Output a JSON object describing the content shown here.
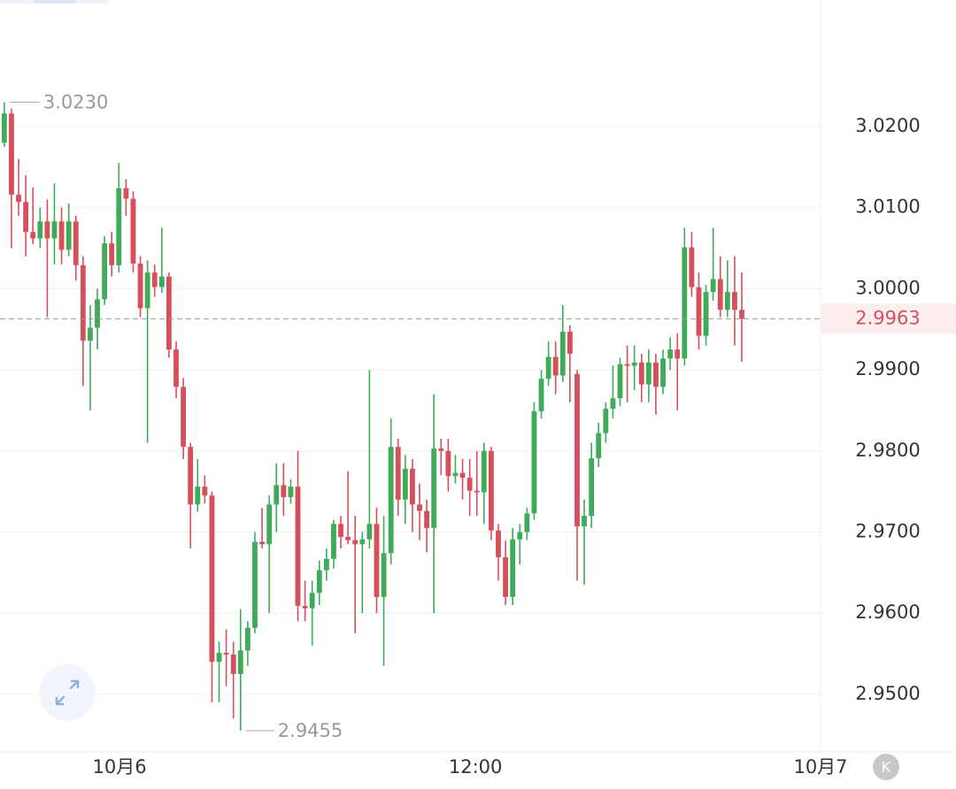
{
  "chart_data": {
    "type": "candlestick",
    "up_color": "#3fab58",
    "down_color": "#d6505b",
    "ylim": [
      2.9429,
      3.0356
    ],
    "yticks": [
      {
        "value": 3.02,
        "label": "3.0200"
      },
      {
        "value": 3.01,
        "label": "3.0100"
      },
      {
        "value": 3.0,
        "label": "3.0000"
      },
      {
        "value": 2.99,
        "label": "2.9900"
      },
      {
        "value": 2.98,
        "label": "2.9800"
      },
      {
        "value": 2.97,
        "label": "2.9700"
      },
      {
        "value": 2.96,
        "label": "2.9600"
      },
      {
        "value": 2.95,
        "label": "2.9500"
      }
    ],
    "xlim": [
      -0.6,
      114.0
    ],
    "xticks": [
      {
        "value": 16.1,
        "label": "10月6"
      },
      {
        "value": 65.8,
        "label": "12:00"
      },
      {
        "value": 114.0,
        "label": "10月7"
      }
    ],
    "grid": true,
    "high_label": "3.0230",
    "low_label": "2.9455",
    "last_label": "2.9963",
    "candles": [
      [
        3.018,
        3.023,
        3.0175,
        3.0216
      ],
      [
        3.0216,
        3.0222,
        3.005,
        3.0116
      ],
      [
        3.0116,
        3.016,
        3.009,
        3.0107
      ],
      [
        3.0107,
        3.014,
        3.004,
        3.007
      ],
      [
        3.007,
        3.0125,
        3.0055,
        3.0062
      ],
      [
        3.0062,
        3.01,
        3.005,
        3.0083
      ],
      [
        3.0083,
        3.011,
        2.9965,
        3.0062
      ],
      [
        3.0062,
        3.013,
        3.003,
        3.0083
      ],
      [
        3.0083,
        3.01,
        3.003,
        3.0048
      ],
      [
        3.0048,
        3.0105,
        3.004,
        3.0083
      ],
      [
        3.0083,
        3.009,
        3.001,
        3.0029
      ],
      [
        3.0029,
        3.004,
        2.988,
        2.9936
      ],
      [
        2.9936,
        2.998,
        2.985,
        2.9952
      ],
      [
        2.9952,
        3.0,
        2.9925,
        2.9987
      ],
      [
        2.9987,
        3.0065,
        2.998,
        3.0056
      ],
      [
        3.0056,
        3.007,
        3.0015,
        3.0029
      ],
      [
        3.0029,
        3.0155,
        3.002,
        3.0124
      ],
      [
        3.0124,
        3.0135,
        3.009,
        3.0111
      ],
      [
        3.0111,
        3.012,
        3.002,
        3.0031
      ],
      [
        3.0031,
        3.004,
        2.9965,
        2.9976
      ],
      [
        2.9976,
        3.0035,
        2.981,
        3.002
      ],
      [
        3.002,
        3.003,
        2.999,
        3.0002
      ],
      [
        3.0002,
        3.0075,
        2.9995,
        3.0015
      ],
      [
        3.0015,
        3.002,
        2.9915,
        2.9925
      ],
      [
        2.9925,
        2.9935,
        2.9865,
        2.9879
      ],
      [
        2.9879,
        2.989,
        2.979,
        2.9805
      ],
      [
        2.9805,
        2.981,
        2.968,
        2.9734
      ],
      [
        2.9734,
        2.979,
        2.9725,
        2.9756
      ],
      [
        2.9756,
        2.977,
        2.9735,
        2.9745
      ],
      [
        2.9745,
        2.975,
        2.949,
        2.954
      ],
      [
        2.954,
        2.9565,
        2.949,
        2.9551
      ],
      [
        2.9551,
        2.958,
        2.951,
        2.9549
      ],
      [
        2.9549,
        2.9565,
        2.947,
        2.9525
      ],
      [
        2.9525,
        2.9605,
        2.9455,
        2.9554
      ],
      [
        2.9554,
        2.959,
        2.9535,
        2.9582
      ],
      [
        2.9582,
        2.97,
        2.9575,
        2.9688
      ],
      [
        2.9688,
        2.973,
        2.968,
        2.9685
      ],
      [
        2.9685,
        2.9745,
        2.96,
        2.9734
      ],
      [
        2.9734,
        2.9785,
        2.97,
        2.9758
      ],
      [
        2.9758,
        2.9785,
        2.972,
        2.9743
      ],
      [
        2.9743,
        2.9765,
        2.9735,
        2.9756
      ],
      [
        2.9756,
        2.98,
        2.959,
        2.9609
      ],
      [
        2.9609,
        2.964,
        2.959,
        2.9606
      ],
      [
        2.9606,
        2.964,
        2.956,
        2.9625
      ],
      [
        2.9625,
        2.9665,
        2.961,
        2.9653
      ],
      [
        2.9653,
        2.968,
        2.964,
        2.9667
      ],
      [
        2.9667,
        2.9715,
        2.9655,
        2.971
      ],
      [
        2.971,
        2.972,
        2.968,
        2.9694
      ],
      [
        2.9694,
        2.9775,
        2.9685,
        2.969
      ],
      [
        2.969,
        2.972,
        2.9575,
        2.9685
      ],
      [
        2.9685,
        2.97,
        2.96,
        2.9691
      ],
      [
        2.9691,
        2.99,
        2.968,
        2.971
      ],
      [
        2.971,
        2.973,
        2.96,
        2.962
      ],
      [
        2.962,
        2.972,
        2.9535,
        2.9674
      ],
      [
        2.9674,
        2.984,
        2.966,
        2.9805
      ],
      [
        2.9805,
        2.9815,
        2.972,
        2.974
      ],
      [
        2.974,
        2.9795,
        2.971,
        2.9778
      ],
      [
        2.9778,
        2.979,
        2.97,
        2.9734
      ],
      [
        2.9734,
        2.976,
        2.969,
        2.9726
      ],
      [
        2.9726,
        2.974,
        2.9675,
        2.9705
      ],
      [
        2.9705,
        2.987,
        2.96,
        2.9803
      ],
      [
        2.9803,
        2.9815,
        2.977,
        2.98
      ],
      [
        2.98,
        2.9815,
        2.975,
        2.9769
      ],
      [
        2.9769,
        2.9795,
        2.976,
        2.9773
      ],
      [
        2.9773,
        2.979,
        2.974,
        2.9767
      ],
      [
        2.9767,
        2.979,
        2.972,
        2.9751
      ],
      [
        2.9751,
        2.98,
        2.972,
        2.9749
      ],
      [
        2.9749,
        2.981,
        2.971,
        2.98
      ],
      [
        2.98,
        2.9805,
        2.969,
        2.9702
      ],
      [
        2.9702,
        2.971,
        2.964,
        2.9669
      ],
      [
        2.9669,
        2.969,
        2.961,
        2.962
      ],
      [
        2.962,
        2.9705,
        2.961,
        2.9691
      ],
      [
        2.9691,
        2.971,
        2.966,
        2.97
      ],
      [
        2.97,
        2.973,
        2.969,
        2.9723
      ],
      [
        2.9723,
        2.986,
        2.9715,
        2.9849
      ],
      [
        2.9849,
        2.99,
        2.984,
        2.9889
      ],
      [
        2.9889,
        2.9935,
        2.988,
        2.9916
      ],
      [
        2.9916,
        2.9935,
        2.987,
        2.9893
      ],
      [
        2.9893,
        2.998,
        2.9885,
        2.9947
      ],
      [
        2.9947,
        2.9955,
        2.986,
        2.992
      ],
      [
        2.9895,
        2.99,
        2.964,
        2.9707
      ],
      [
        2.9707,
        2.974,
        2.9635,
        2.972
      ],
      [
        2.972,
        2.981,
        2.9705,
        2.9791
      ],
      [
        2.9791,
        2.9835,
        2.978,
        2.9822
      ],
      [
        2.9822,
        2.986,
        2.981,
        2.9852
      ],
      [
        2.9852,
        2.9905,
        2.984,
        2.9865
      ],
      [
        2.9865,
        2.9915,
        2.9855,
        2.9907
      ],
      [
        2.9907,
        2.993,
        2.986,
        2.9905
      ],
      [
        2.9905,
        2.993,
        2.9875,
        2.9909
      ],
      [
        2.9909,
        2.992,
        2.986,
        2.9882
      ],
      [
        2.9882,
        2.9925,
        2.986,
        2.9909
      ],
      [
        2.9909,
        2.992,
        2.9845,
        2.9879
      ],
      [
        2.9879,
        2.9925,
        2.987,
        2.9914
      ],
      [
        2.9914,
        2.994,
        2.99,
        2.9925
      ],
      [
        2.9925,
        2.9945,
        2.985,
        2.9914
      ],
      [
        2.9914,
        3.0075,
        2.9905,
        3.0051
      ],
      [
        3.0051,
        3.007,
        2.999,
        3.0002
      ],
      [
        3.0002,
        3.002,
        2.9925,
        2.9942
      ],
      [
        2.9942,
        3.0005,
        2.993,
        2.9996
      ],
      [
        2.9996,
        3.0075,
        2.9985,
        3.0012
      ],
      [
        3.0012,
        3.004,
        2.9965,
        2.9974
      ],
      [
        2.9974,
        3.0035,
        2.9965,
        2.9996
      ],
      [
        2.9996,
        3.004,
        2.993,
        2.9974
      ],
      [
        2.9974,
        3.002,
        2.991,
        2.9963
      ]
    ]
  },
  "controls": {
    "k_button": "K"
  }
}
